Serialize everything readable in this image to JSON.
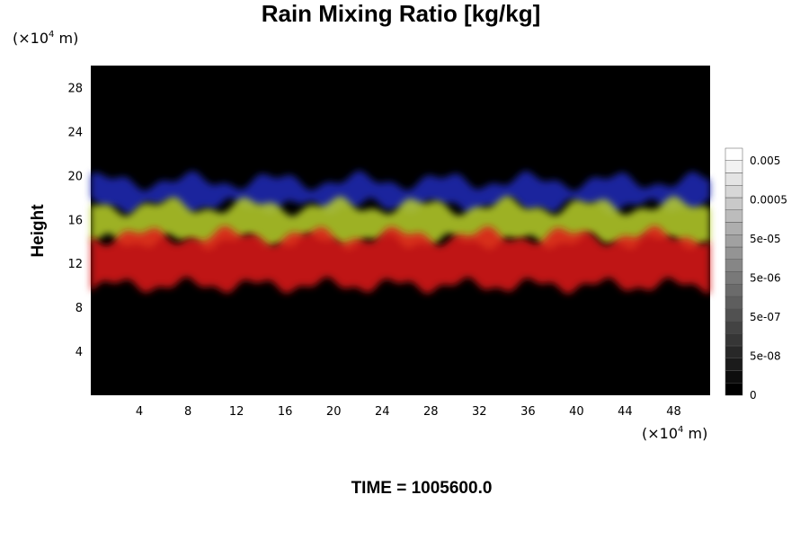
{
  "chart_data": {
    "type": "heatmap",
    "title": "Rain Mixing Ratio [kg/kg]",
    "ylabel": "Height",
    "xlabel": "",
    "x_unit": "(×10",
    "x_unit_exp": "4",
    "x_unit_suffix": " m)",
    "y_unit": "(×10",
    "y_unit_exp": "4",
    "y_unit_suffix": " m)",
    "xlim": [
      0,
      51
    ],
    "ylim": [
      0,
      30
    ],
    "x_ticks": [
      4,
      8,
      12,
      16,
      20,
      24,
      28,
      32,
      36,
      40,
      44,
      48
    ],
    "y_ticks": [
      4,
      8,
      12,
      16,
      20,
      24,
      28
    ],
    "layers": [
      {
        "color": "#1e2ab8",
        "height_range": [
          17.2,
          19.5
        ]
      },
      {
        "color": "#b8d02a",
        "height_range": [
          14.0,
          17.2
        ]
      },
      {
        "color": "#e01818",
        "height_range": [
          10.0,
          14.5
        ]
      }
    ],
    "colorbar": {
      "labels": [
        "0.005",
        "0.0005",
        "5e-05",
        "5e-06",
        "5e-07",
        "5e-08",
        "0"
      ],
      "levels": 20
    },
    "background": "#000000",
    "footer": "TIME = 1005600.0"
  }
}
